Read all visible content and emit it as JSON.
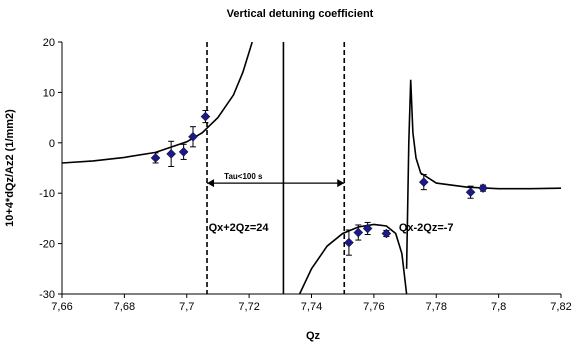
{
  "chart_data": {
    "type": "scatter",
    "title": "Vertical detuning coefficient",
    "xlabel": "Qz",
    "ylabel": "10+4*dQz/Az2 (1/mm2)",
    "xlim": [
      7.66,
      7.82
    ],
    "ylim": [
      -30,
      20
    ],
    "x_ticks": [
      "7,66",
      "7,68",
      "7,7",
      "7,72",
      "7,74",
      "7,76",
      "7,78",
      "7,8",
      "7,82"
    ],
    "y_ticks": [
      "-30",
      "-20",
      "-10",
      "0",
      "10",
      "20"
    ],
    "grid": false,
    "legend": "none",
    "series": [
      {
        "kind": "measured",
        "color": "#1a1a8c",
        "marker": "diamond",
        "points": [
          {
            "x": 7.69,
            "y": -3.0,
            "err": 1.0
          },
          {
            "x": 7.695,
            "y": -2.2,
            "err": 2.5
          },
          {
            "x": 7.699,
            "y": -1.8,
            "err": 1.5
          },
          {
            "x": 7.702,
            "y": 1.2,
            "err": 2.0
          },
          {
            "x": 7.706,
            "y": 5.2,
            "err": 1.2
          },
          {
            "x": 7.752,
            "y": -19.8,
            "err": 2.5
          },
          {
            "x": 7.755,
            "y": -17.8,
            "err": 1.5
          },
          {
            "x": 7.758,
            "y": -17.0,
            "err": 1.2
          },
          {
            "x": 7.764,
            "y": -18.0,
            "err": 0.6
          },
          {
            "x": 7.776,
            "y": -7.8,
            "err": 1.5
          },
          {
            "x": 7.791,
            "y": -9.8,
            "err": 1.2
          },
          {
            "x": 7.795,
            "y": -9.0,
            "err": 0.6
          }
        ]
      },
      {
        "kind": "model",
        "color": "#000000",
        "segments": [
          [
            [
              7.66,
              -4.0
            ],
            [
              7.67,
              -3.6
            ],
            [
              7.68,
              -2.9
            ],
            [
              7.69,
              -1.9
            ],
            [
              7.7,
              0.2
            ],
            [
              7.705,
              2.0
            ],
            [
              7.71,
              5.0
            ],
            [
              7.715,
              9.5
            ],
            [
              7.718,
              14.0
            ],
            [
              7.72,
              18.0
            ],
            [
              7.721,
              20.0
            ]
          ],
          [
            [
              7.7362,
              -30.0
            ],
            [
              7.74,
              -25.0
            ],
            [
              7.745,
              -20.5
            ],
            [
              7.75,
              -18.0
            ],
            [
              7.755,
              -16.7
            ],
            [
              7.76,
              -16.2
            ],
            [
              7.764,
              -16.5
            ],
            [
              7.767,
              -18.0
            ],
            [
              7.769,
              -22.0
            ],
            [
              7.7705,
              -30.0
            ]
          ],
          [
            [
              7.7705,
              -25.0
            ],
            [
              7.7712,
              0.0
            ],
            [
              7.7718,
              12.5
            ],
            [
              7.7725,
              2.0
            ],
            [
              7.7735,
              -3.0
            ],
            [
              7.775,
              -6.0
            ],
            [
              7.78,
              -8.0
            ],
            [
              7.79,
              -8.8
            ],
            [
              7.8,
              -9.1
            ],
            [
              7.81,
              -9.1
            ],
            [
              7.82,
              -9.0
            ]
          ]
        ]
      }
    ],
    "vertical_lines": [
      {
        "x": 7.7065,
        "style": "dashed"
      },
      {
        "x": 7.731,
        "style": "solid"
      },
      {
        "x": 7.7505,
        "style": "dashed"
      }
    ],
    "annotations": [
      {
        "text": "Tau<100 s",
        "x": 7.712,
        "y": -7.2,
        "size": "small"
      },
      {
        "text": "Qx+2Qz=24",
        "x": 7.707,
        "y": -17.5,
        "size": "normal"
      },
      {
        "text": "Qx-2Qz=-7",
        "x": 7.768,
        "y": -17.5,
        "size": "normal"
      }
    ],
    "arrow": {
      "x1": 7.7065,
      "x2": 7.7505,
      "y": -8.0
    }
  }
}
